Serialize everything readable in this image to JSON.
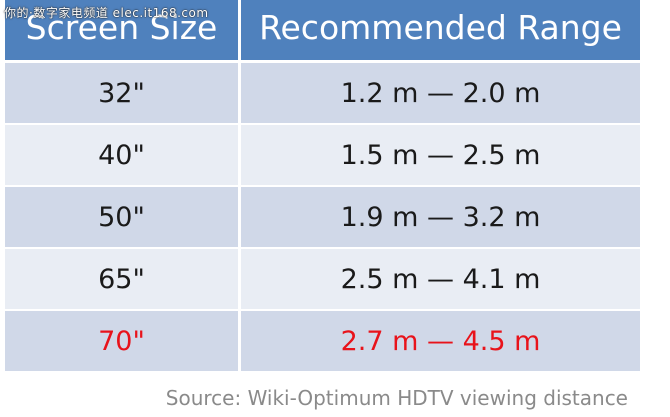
{
  "watermark": "你的·数字家电频道 elec.it168.com",
  "table": {
    "header": [
      "Screen Size",
      "Recommended Range"
    ],
    "rows": [
      [
        "32\"",
        "1.2 m — 2.0 m"
      ],
      [
        "40\"",
        "1.5 m — 2.5 m"
      ],
      [
        "50\"",
        "1.9 m — 3.2 m"
      ],
      [
        "65\"",
        "2.5 m — 4.1 m"
      ],
      [
        "70\"",
        "2.7 m — 4.5 m"
      ]
    ]
  },
  "source": "Source:  Wiki-Optimum HDTV viewing distance"
}
